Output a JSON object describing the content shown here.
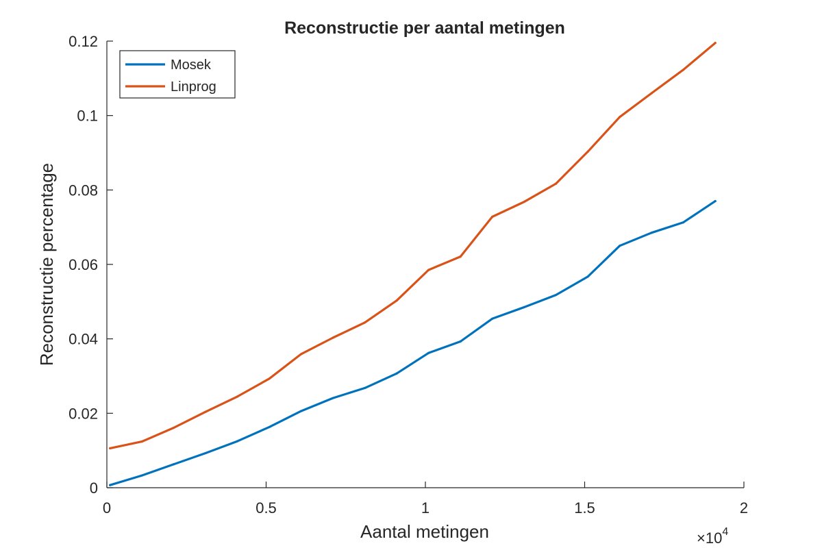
{
  "chart_data": {
    "type": "line",
    "title": "Reconstructie per aantal metingen",
    "xlabel": "Aantal metingen",
    "ylabel": "Reconstructie percentage",
    "x_exponent_base": "×10",
    "x_exponent_power": "4",
    "x_multiplier": 10000,
    "xlim": [
      0,
      20000
    ],
    "ylim": [
      0,
      0.12
    ],
    "xticks": [
      0,
      5000,
      10000,
      15000,
      20000
    ],
    "xtick_labels": [
      "0",
      "0.5",
      "1",
      "1.5",
      "2"
    ],
    "yticks": [
      0,
      0.02,
      0.04,
      0.06,
      0.08,
      0.1,
      0.12
    ],
    "ytick_labels": [
      "0",
      "0.02",
      "0.04",
      "0.06",
      "0.08",
      "0.1",
      "0.12"
    ],
    "grid": false,
    "legend_position": "top-left",
    "x": [
      100,
      1100,
      2100,
      3100,
      4100,
      5100,
      6100,
      7100,
      8100,
      9100,
      10100,
      11100,
      12100,
      13100,
      14100,
      15100,
      16100,
      17100,
      18100,
      19100
    ],
    "series": [
      {
        "name": "Mosek",
        "color": "#0072BD",
        "values": [
          0.0007,
          0.0033,
          0.0063,
          0.0093,
          0.0125,
          0.0163,
          0.0206,
          0.0241,
          0.0268,
          0.0307,
          0.0362,
          0.0393,
          0.0454,
          0.0485,
          0.0518,
          0.0567,
          0.065,
          0.0685,
          0.0713,
          0.077
        ]
      },
      {
        "name": "Linprog",
        "color": "#D95319",
        "values": [
          0.0106,
          0.0124,
          0.0161,
          0.0204,
          0.0245,
          0.0293,
          0.0359,
          0.0403,
          0.0444,
          0.0503,
          0.0585,
          0.0621,
          0.0728,
          0.0768,
          0.0817,
          0.0903,
          0.0996,
          0.106,
          0.1123,
          0.1195
        ]
      }
    ]
  }
}
